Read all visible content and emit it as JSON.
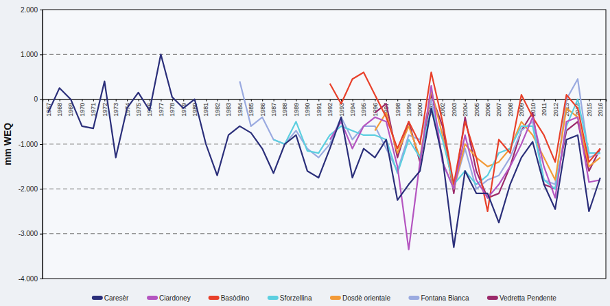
{
  "chart_data": {
    "type": "line",
    "y_label": "mm WEQ",
    "categories": [
      "1967",
      "1968",
      "1969",
      "1970",
      "1971",
      "1972",
      "1973",
      "1974",
      "1975",
      "1976",
      "1977",
      "1978",
      "1979",
      "1980",
      "1981",
      "1982",
      "1983",
      "1984",
      "1985",
      "1986",
      "1987",
      "1988",
      "1989",
      "1990",
      "1991",
      "1992",
      "1993",
      "1994",
      "1995",
      "1996",
      "1997",
      "1998",
      "1999",
      "2000",
      "2001",
      "2002",
      "2003",
      "2004",
      "2005",
      "2006",
      "2007",
      "2008",
      "2009",
      "2010",
      "2011",
      "2012",
      "2013",
      "2014",
      "2015",
      "2016"
    ],
    "ylim": [
      -4000,
      2000
    ],
    "yticks": [
      {
        "value": -4000,
        "label": "-4.000"
      },
      {
        "value": -3000,
        "label": "-3.000"
      },
      {
        "value": -2000,
        "label": "-2.000"
      },
      {
        "value": -1000,
        "label": "-1.000"
      },
      0,
      {
        "value": 1000,
        "label": "1.000"
      },
      {
        "value": 2000,
        "label": "2.000"
      }
    ],
    "grid": true,
    "legend": "bottom",
    "series": [
      {
        "name": "Caresèr",
        "color": "#2b2f7a",
        "values": [
          -300,
          250,
          0,
          -600,
          -650,
          400,
          -1300,
          -200,
          150,
          -250,
          1000,
          50,
          -200,
          0,
          -1000,
          -1700,
          -800,
          -600,
          -750,
          -1100,
          -1650,
          -1000,
          -800,
          -1600,
          -1750,
          -1100,
          -400,
          -1750,
          -1100,
          -1300,
          -900,
          -2250,
          -1900,
          -1600,
          -200,
          -1300,
          -3300,
          -1600,
          -2100,
          -2100,
          -2750,
          -1900,
          -1300,
          -950,
          -1900,
          -2450,
          -900,
          -800,
          -2500,
          -1750
        ]
      },
      {
        "name": "Ciardoney",
        "color": "#b455c0",
        "values": [
          null,
          null,
          null,
          null,
          null,
          null,
          null,
          null,
          null,
          null,
          null,
          null,
          null,
          null,
          null,
          null,
          null,
          null,
          null,
          null,
          null,
          null,
          null,
          null,
          null,
          -900,
          -500,
          -1100,
          -600,
          -400,
          -500,
          -1500,
          -3350,
          -1400,
          300,
          -1400,
          -2000,
          -800,
          -1800,
          -2200,
          -1900,
          -1500,
          -1000,
          -400,
          -1500,
          -2200,
          -500,
          -400,
          -1850,
          -1800
        ]
      },
      {
        "name": "Basòdino",
        "color": "#e8402a",
        "values": [
          null,
          null,
          null,
          null,
          null,
          null,
          null,
          null,
          null,
          null,
          null,
          null,
          null,
          null,
          null,
          null,
          null,
          null,
          null,
          null,
          null,
          null,
          null,
          null,
          null,
          350,
          -100,
          450,
          600,
          100,
          -400,
          -1100,
          -500,
          -1000,
          600,
          -500,
          -1900,
          -500,
          -1300,
          -2500,
          -900,
          -1200,
          100,
          -400,
          -800,
          -1400,
          100,
          -200,
          -1400,
          -1100
        ]
      },
      {
        "name": "Sforzellina",
        "color": "#5ccfe0",
        "values": [
          null,
          null,
          null,
          null,
          null,
          null,
          null,
          null,
          null,
          null,
          null,
          null,
          null,
          null,
          null,
          null,
          null,
          null,
          null,
          null,
          -900,
          -1000,
          -500,
          -1150,
          -1200,
          -800,
          -600,
          -700,
          -800,
          -800,
          -900,
          -1650,
          -900,
          -1300,
          -200,
          -900,
          -1900,
          -1600,
          -1900,
          -1700,
          -1200,
          -1100,
          -600,
          -600,
          -1800,
          -2000,
          -600,
          0,
          -1200,
          -1200
        ]
      },
      {
        "name": "Dosdè orientale",
        "color": "#f29a38",
        "values": [
          null,
          null,
          null,
          null,
          null,
          null,
          null,
          null,
          null,
          null,
          null,
          null,
          null,
          null,
          null,
          null,
          null,
          null,
          null,
          null,
          null,
          null,
          null,
          null,
          null,
          null,
          null,
          null,
          null,
          -700,
          -300,
          -1200,
          -600,
          -1300,
          200,
          -800,
          -2000,
          -1000,
          -1300,
          -1500,
          -1400,
          -1100,
          -500,
          -800,
          -1300,
          -1800,
          -200,
          -400,
          -1500,
          -1300
        ]
      },
      {
        "name": "Fontana Bianca",
        "color": "#9aaae0",
        "values": [
          null,
          null,
          null,
          null,
          null,
          null,
          null,
          null,
          null,
          null,
          null,
          null,
          null,
          null,
          null,
          null,
          null,
          400,
          -600,
          -400,
          -900,
          -1000,
          -700,
          -1100,
          -1300,
          -1000,
          -400,
          -900,
          -600,
          -600,
          -1100,
          -1600,
          -800,
          -900,
          0,
          -1400,
          -2000,
          -1100,
          -2000,
          -1800,
          -1700,
          -1300,
          -700,
          -500,
          -1800,
          -1900,
          0,
          450,
          -1300,
          -1200
        ]
      },
      {
        "name": "Vedretta Pendente",
        "color": "#9b2a6a",
        "values": [
          null,
          null,
          null,
          null,
          null,
          null,
          null,
          null,
          null,
          null,
          null,
          null,
          null,
          null,
          null,
          null,
          null,
          null,
          null,
          null,
          null,
          null,
          null,
          null,
          null,
          null,
          null,
          null,
          null,
          -300,
          -100,
          -1300,
          -500,
          -1400,
          100,
          -600,
          -2100,
          -400,
          -1600,
          -2200,
          -2100,
          -1500,
          -700,
          -300,
          -1900,
          -2000,
          -700,
          -500,
          -1600,
          -1100
        ]
      }
    ]
  }
}
